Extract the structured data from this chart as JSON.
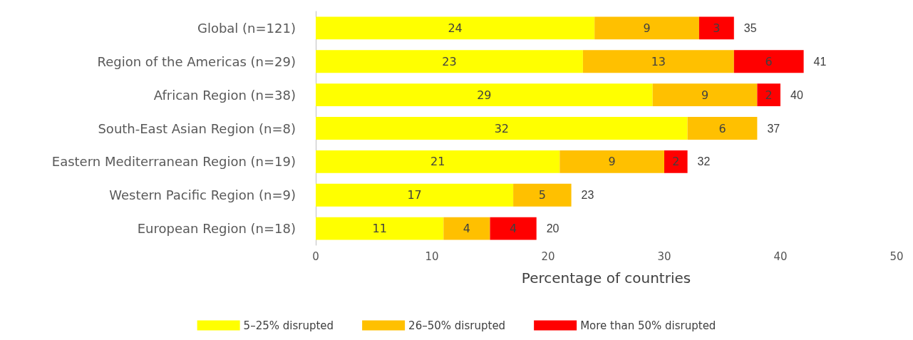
{
  "chart_data": {
    "type": "bar",
    "orientation": "horizontal",
    "stacked": true,
    "xlabel": "Percentage of countries",
    "categories": [
      "Global (n=121)",
      "Region of the Americas (n=29)",
      "African Region (n=38)",
      "South-East Asian Region (n=8)",
      "Eastern Mediterranean Region (n=19)",
      "Western Pacific Region (n=9)",
      "European Region (n=18)"
    ],
    "series": [
      {
        "name": "5–25% disrupted",
        "color": "#ffff00",
        "values": [
          24,
          23,
          29,
          32,
          21,
          17,
          11
        ]
      },
      {
        "name": "26–50% disrupted",
        "color": "#ffc000",
        "values": [
          9,
          13,
          9,
          6,
          9,
          5,
          4
        ]
      },
      {
        "name": "More than 50% disrupted",
        "color": "#ff0000",
        "values": [
          3,
          6,
          2,
          null,
          2,
          null,
          4
        ]
      }
    ],
    "totals": [
      "35",
      "41",
      "40",
      "37",
      "32",
      "23",
      "20"
    ],
    "data_labels": true,
    "xlim": [
      0,
      50
    ],
    "xticks": [
      0,
      10,
      20,
      30,
      40,
      50
    ],
    "grid": false,
    "legend": "bottom"
  }
}
